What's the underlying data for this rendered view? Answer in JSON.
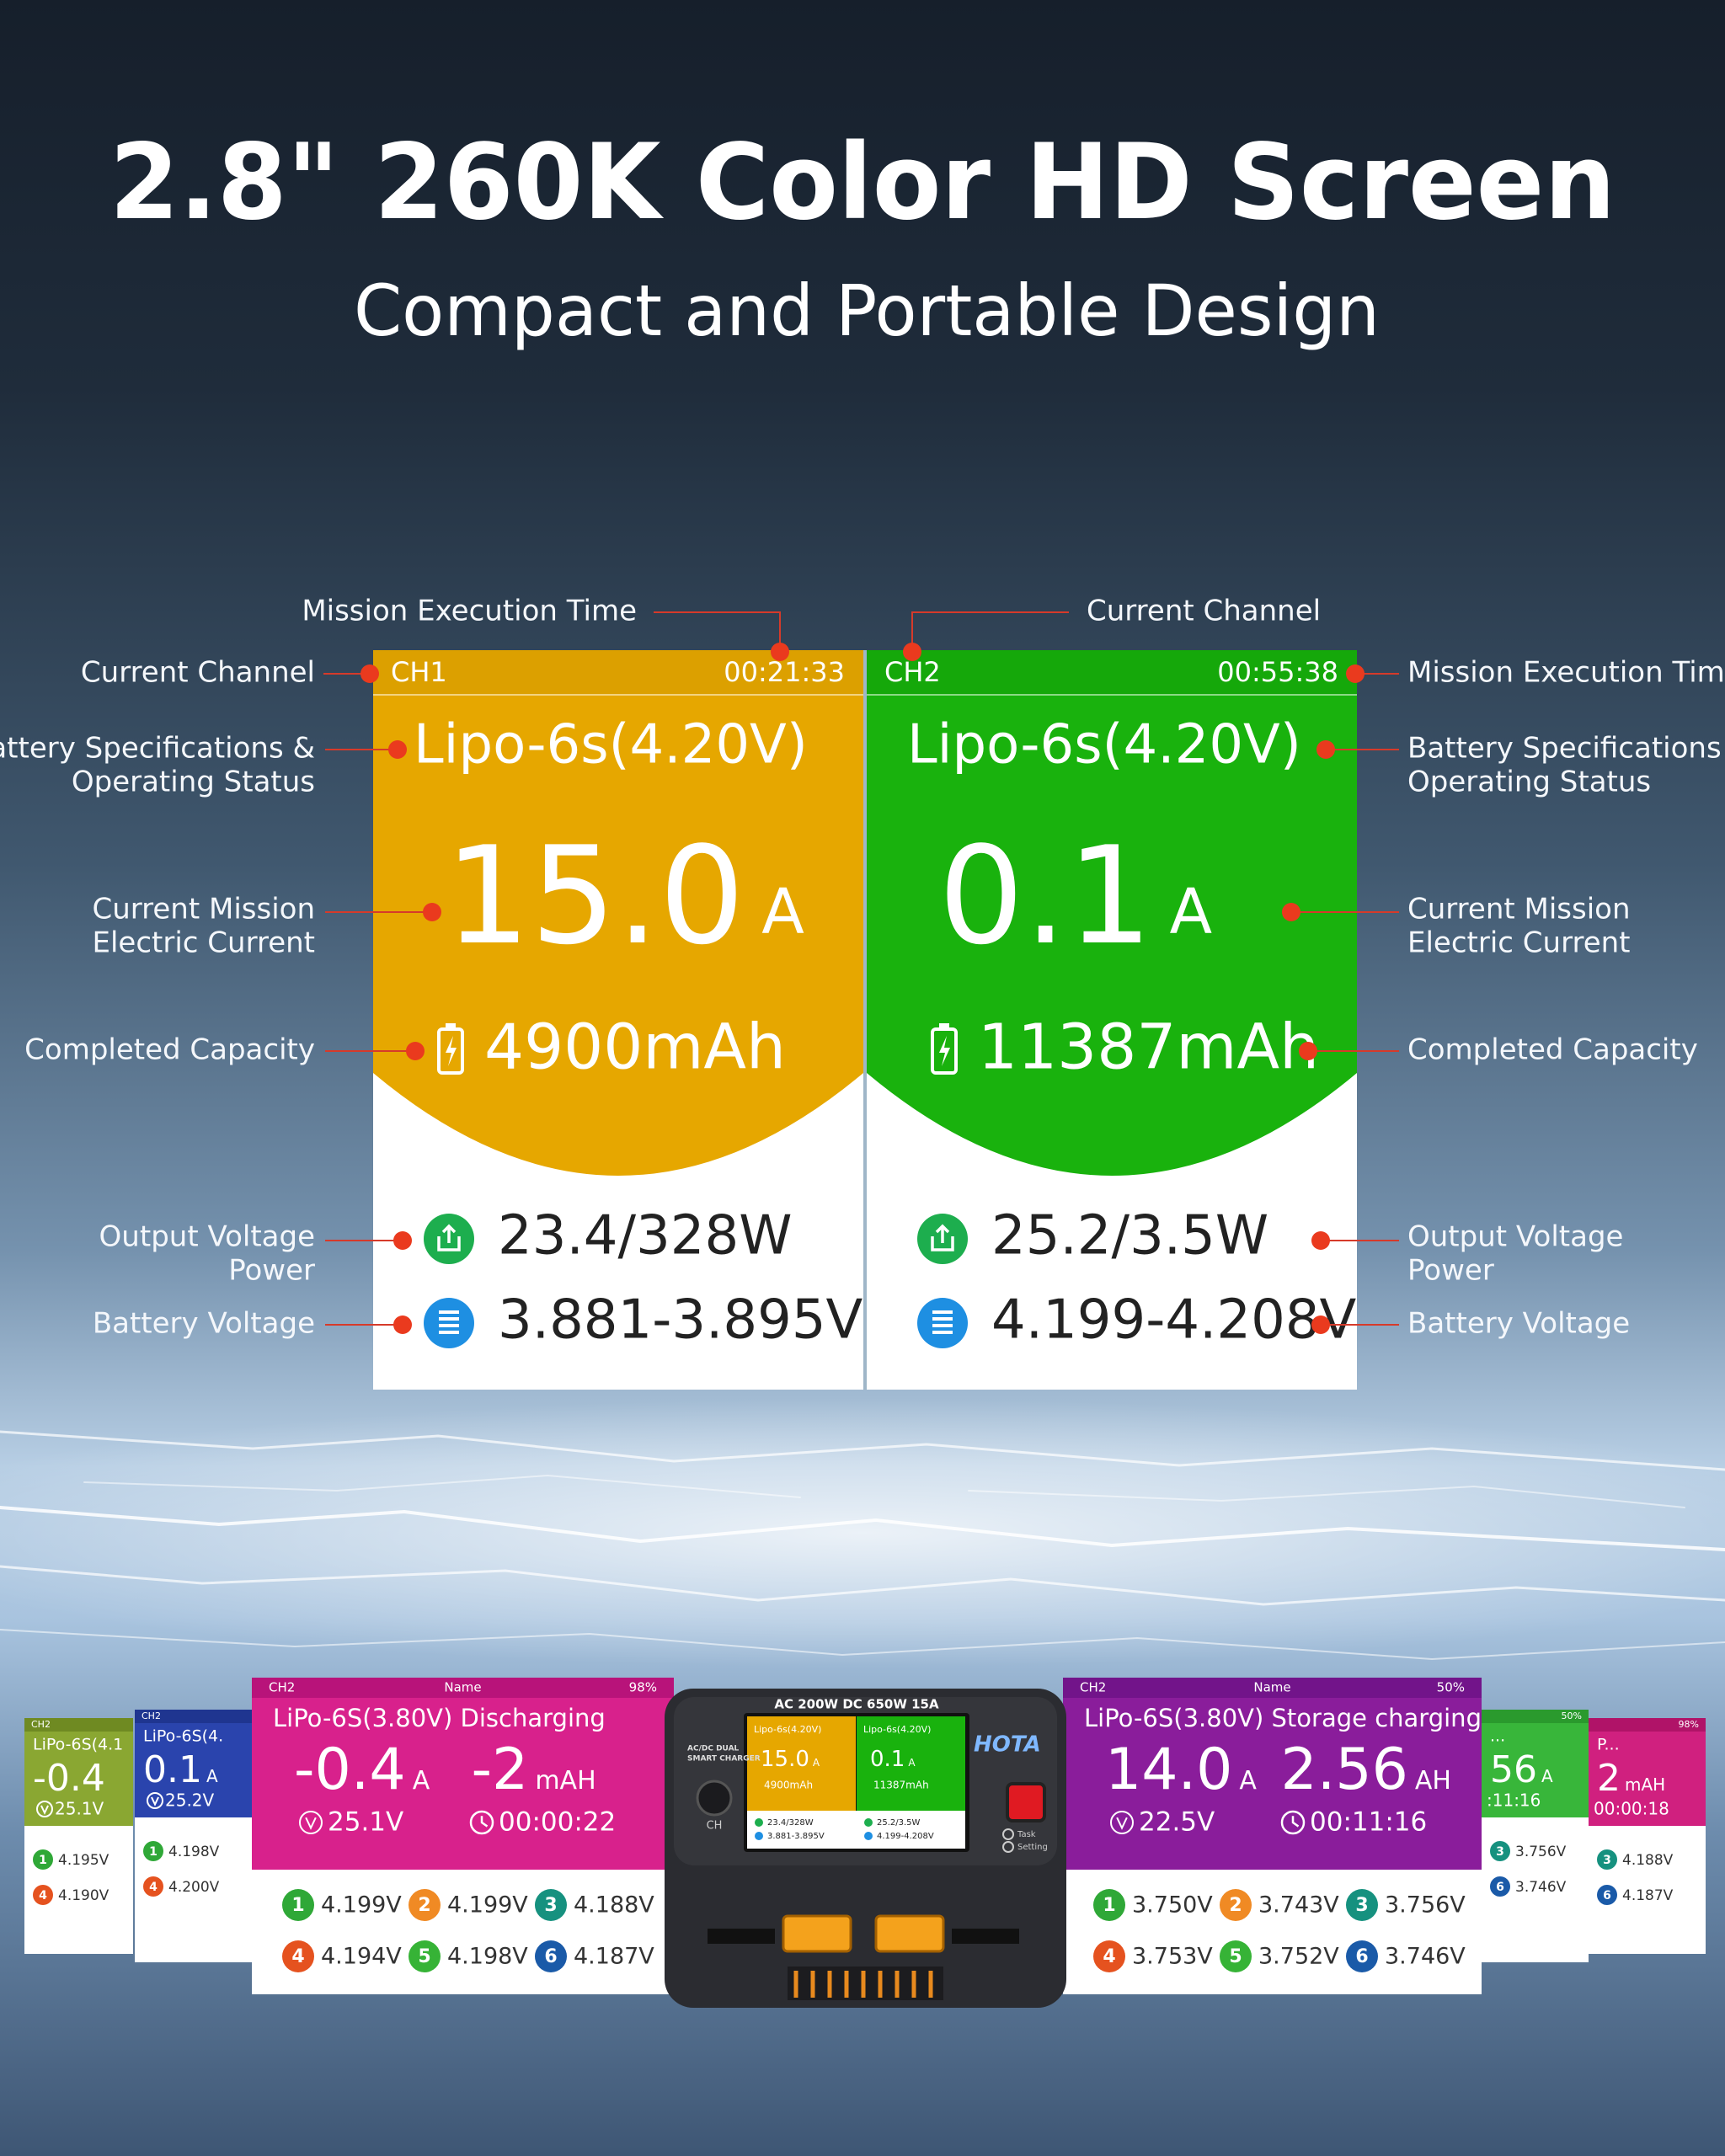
{
  "header": {
    "title": "2.8\" 260K Color HD Screen",
    "subtitle": "Compact and Portable Design"
  },
  "screens": [
    {
      "channel": "CH1",
      "time": "00:21:33",
      "battery": "Lipo-6s(4.20V)",
      "current": "15.0",
      "current_unit": "A",
      "capacity": "4900mAh",
      "output": "23.4/328W",
      "voltage": "3.881-3.895V"
    },
    {
      "channel": "CH2",
      "time": "00:55:38",
      "battery": "Lipo-6s(4.20V)",
      "current": "0.1",
      "current_unit": "A",
      "capacity": "11387mAh",
      "output": "25.2/3.5W",
      "voltage": "4.199-4.208V"
    }
  ],
  "annotations": {
    "left": [
      [
        "Mission Execution Time"
      ],
      [
        "Current Channel"
      ],
      [
        "Battery Specifications &",
        "Operating Status"
      ],
      [
        "Current Mission",
        "Electric Current"
      ],
      [
        "Completed Capacity"
      ],
      [
        "Output Voltage",
        "Power"
      ],
      [
        "Battery Voltage"
      ]
    ],
    "right": [
      [
        "Current Channel"
      ],
      [
        "Mission Execution Time"
      ],
      [
        "Battery Specifications &",
        "Operating Status"
      ],
      [
        "Current Mission",
        "Electric Current"
      ],
      [
        "Completed Capacity"
      ],
      [
        "Output Voltage",
        "Power"
      ],
      [
        "Battery Voltage"
      ]
    ]
  },
  "bottom_screens": [
    {
      "header": [
        "CH2"
      ],
      "title": "LiPo-6S(4.1",
      "readings": [
        {
          "value": "-0.4"
        }
      ],
      "voltage": "25.1V",
      "cells": [
        {
          "n": "1",
          "v": "4.195V"
        },
        {
          "n": "4",
          "v": "4.190V"
        }
      ]
    },
    {
      "header": [
        "CH2"
      ],
      "title": "LiPo-6S(4.",
      "readings": [
        {
          "value": "0.1",
          "unit": "A"
        }
      ],
      "voltage": "25.2V",
      "cells": [
        {
          "n": "1",
          "v": "4.198V"
        },
        {
          "n": "4",
          "v": "4.200V"
        }
      ]
    },
    {
      "header": [
        "CH2",
        "Name",
        "98%"
      ],
      "title": "LiPo-6S(3.80V) Discharging",
      "readings": [
        {
          "value": "-0.4",
          "unit": "A"
        },
        {
          "value": "-2",
          "unit": "mAH"
        }
      ],
      "voltage": "25.1V",
      "time": "00:00:22",
      "cells": [
        {
          "n": "1",
          "v": "4.199V"
        },
        {
          "n": "2",
          "v": "4.199V"
        },
        {
          "n": "3",
          "v": "4.188V"
        },
        {
          "n": "4",
          "v": "4.194V"
        },
        {
          "n": "5",
          "v": "4.198V"
        },
        {
          "n": "6",
          "v": "4.187V"
        }
      ]
    },
    {
      "header": [
        "CH2",
        "Name",
        "50%"
      ],
      "title": "LiPo-6S(3.80V) Storage charging",
      "readings": [
        {
          "value": "14.0",
          "unit": "A"
        },
        {
          "value": "2.56",
          "unit": "AH"
        }
      ],
      "voltage": "22.5V",
      "time": "00:11:16",
      "cells": [
        {
          "n": "1",
          "v": "3.750V"
        },
        {
          "n": "2",
          "v": "3.743V"
        },
        {
          "n": "3",
          "v": "3.756V"
        },
        {
          "n": "4",
          "v": "3.753V"
        },
        {
          "n": "5",
          "v": "3.752V"
        },
        {
          "n": "6",
          "v": "3.746V"
        }
      ]
    },
    {
      "header": [
        "50%"
      ],
      "title": "...",
      "readings": [
        {
          "value": "56",
          "unit": "A"
        }
      ],
      "time": ":11:16",
      "cells": [
        {
          "n": "3",
          "v": "3.756V"
        },
        {
          "n": "6",
          "v": "3.746V"
        }
      ]
    },
    {
      "header": [
        "98%"
      ],
      "title": "P...",
      "readings": [
        {
          "value": "2",
          "unit": "mAH"
        }
      ],
      "time": "00:00:18",
      "cells": [
        {
          "n": "3",
          "v": "4.188V"
        },
        {
          "n": "6",
          "v": "4.187V"
        }
      ]
    }
  ],
  "charger": {
    "spec": "AC 200W  DC 650W 15A",
    "type_lines": [
      "AC/DC DUAL",
      "SMART CHARGER"
    ],
    "brand": "HOTA",
    "button": "CH",
    "menu": [
      "Task",
      "Setting"
    ]
  }
}
